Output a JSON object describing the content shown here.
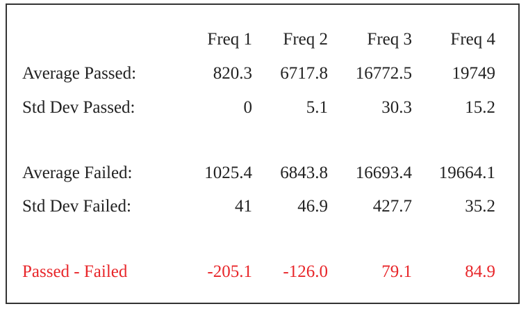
{
  "table": {
    "header": [
      "Freq 1",
      "Freq 2",
      "Freq 3",
      "Freq 4"
    ],
    "groups": [
      {
        "rows": [
          {
            "label": "Average Passed:",
            "values": [
              "820.3",
              "6717.8",
              "16772.5",
              "19749"
            ]
          },
          {
            "label": "Std Dev Passed:",
            "values": [
              "0",
              "5.1",
              "30.3",
              "15.2"
            ]
          }
        ]
      },
      {
        "rows": [
          {
            "label": "Average Failed:",
            "values": [
              "1025.4",
              "6843.8",
              "16693.4",
              "19664.1"
            ]
          },
          {
            "label": "Std Dev Failed:",
            "values": [
              "41",
              "46.9",
              "427.7",
              "35.2"
            ]
          }
        ]
      },
      {
        "rows": [
          {
            "label": "Passed - Failed",
            "values": [
              "-205.1",
              "-126.0",
              "79.1",
              "84.9"
            ]
          }
        ]
      }
    ]
  }
}
